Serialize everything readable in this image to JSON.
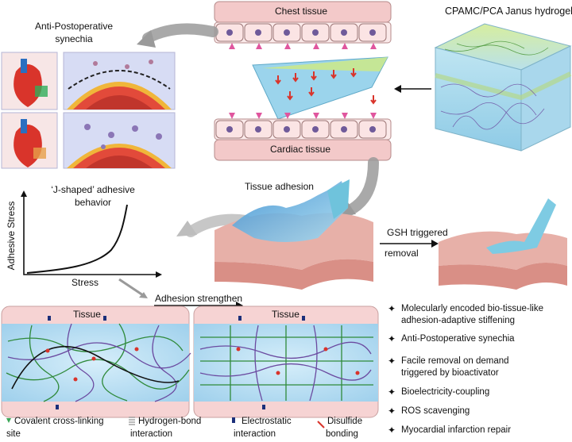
{
  "labels": {
    "chest_tissue": "Chest tissue",
    "cardiac_tissue": "Cardiac tissue",
    "hydrogel_title": "CPAMC/PCA Janus hydrogel",
    "anti_synechia_line1": "Anti-Postoperative",
    "anti_synechia_line2": "synechia",
    "j_shaped_line1": "‘J-shaped’ adhesive",
    "j_shaped_line2": "behavior",
    "y_axis": "Adhesive Stress",
    "x_axis": "Stress",
    "tissue_adhesion": "Tissue adhesion",
    "gsh_line1": "GSH triggered",
    "gsh_line2": "removal",
    "adhesion_strengthen": "Adhesion strengthen",
    "tissue_left": "Tissue",
    "tissue_right": "Tissue"
  },
  "legend": {
    "covalent_line1": "Covalent cross-linking",
    "covalent_line2": "site",
    "hbond_line1": "Hydrogen-bond",
    "hbond_line2": "interaction",
    "electro_line1": "Electrostatic",
    "electro_line2": "interaction",
    "disulfide_line1": "Disulfide",
    "disulfide_line2": "bonding"
  },
  "features": [
    {
      "line1": "Molecularly encoded bio-tissue-like",
      "line2": "adhesion-adaptive stiffening"
    },
    {
      "line1": "Anti-Postoperative synechia",
      "line2": ""
    },
    {
      "line1": "Facile removal on demand",
      "line2": "triggered by bioactivator"
    },
    {
      "line1": "Bioelectricity-coupling",
      "line2": ""
    },
    {
      "line1": "ROS scavenging",
      "line2": ""
    },
    {
      "line1": "Myocardial infarction repair",
      "line2": ""
    }
  ],
  "colors": {
    "tissue_pink": "#f2c6c6",
    "hydrogel_blue": "#9fd3ea",
    "hydrogel_green": "#c9e79a",
    "chain_green": "#2f8a3a",
    "chain_purple": "#6b4aa0",
    "disulfide_red": "#d9342b",
    "electro_navy": "#1c2f7a",
    "arrow_gray": "#9a9a9a"
  },
  "icons": {
    "feature_bullet": "four-point-star-icon"
  }
}
